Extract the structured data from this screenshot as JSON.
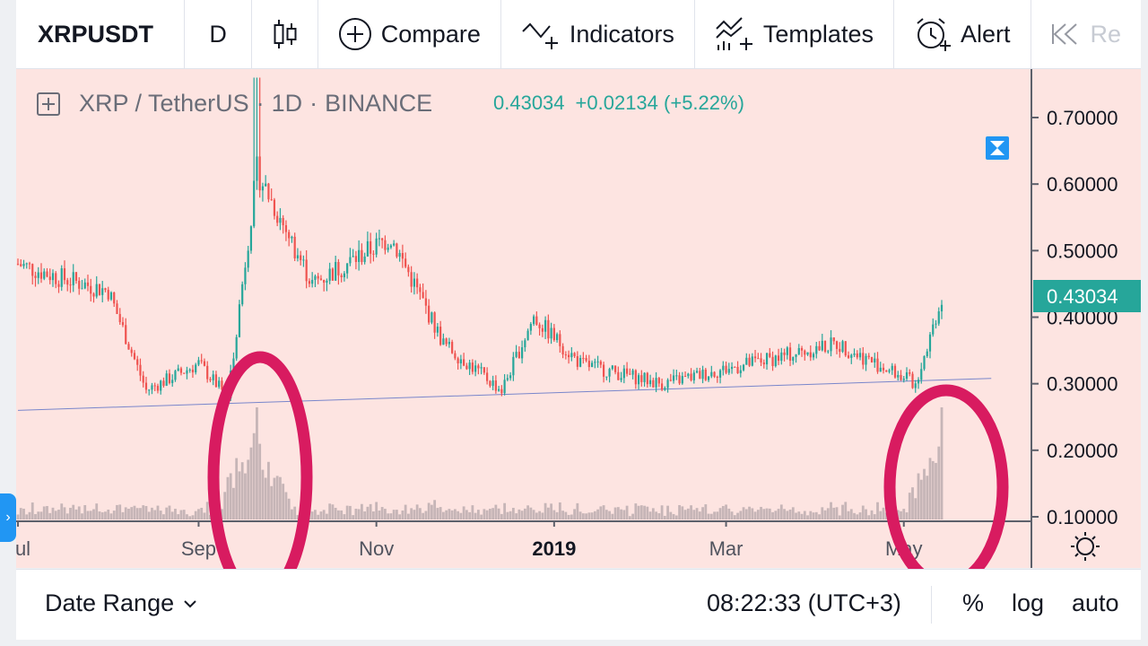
{
  "toolbar": {
    "symbol": "XRPUSDT",
    "interval": "D",
    "compare_label": "Compare",
    "indicators_label": "Indicators",
    "templates_label": "Templates",
    "alert_label": "Alert",
    "replay_label": "Re"
  },
  "legend": {
    "pair": "XRP / TetherUS",
    "dot1": "·",
    "timeframe": "1D",
    "dot2": "·",
    "exchange": "BINANCE",
    "price": "0.43034",
    "change": "+0.02134 (+5.22%)"
  },
  "price_axis": {
    "ticks": [
      "0.70000",
      "0.60000",
      "0.50000",
      "0.40000",
      "0.30000",
      "0.20000",
      "0.10000"
    ],
    "last_price_label": "0.43034"
  },
  "time_axis": {
    "labels": [
      "Jul",
      "Sep",
      "Nov",
      "2019",
      "Mar",
      "May"
    ]
  },
  "bottom_bar": {
    "date_range_label": "Date Range",
    "clock": "08:22:33 (UTC+3)",
    "percent_label": "%",
    "log_label": "log",
    "auto_label": "auto"
  },
  "colors": {
    "up": "#26a69a",
    "down": "#ef5350",
    "chart_bg": "#fde4e1",
    "annotation": "#d81b60",
    "trendline": "#7986cb",
    "volume": "#c6b5b7"
  },
  "chart_data": {
    "type": "candlestick",
    "title": "XRP / TetherUS · 1D · BINANCE",
    "x_range": [
      "2018-07-01",
      "2019-05-14"
    ],
    "y_range": [
      0.1,
      0.75
    ],
    "last_price": 0.43034,
    "price_path_anchors": [
      {
        "date": "2018-07-01",
        "close": 0.48
      },
      {
        "date": "2018-07-15",
        "close": 0.46
      },
      {
        "date": "2018-08-01",
        "close": 0.44
      },
      {
        "date": "2018-08-14",
        "close": 0.29
      },
      {
        "date": "2018-09-01",
        "close": 0.33
      },
      {
        "date": "2018-09-11",
        "close": 0.28
      },
      {
        "date": "2018-09-21",
        "close": 0.62
      },
      {
        "date": "2018-10-10",
        "close": 0.45
      },
      {
        "date": "2018-11-06",
        "close": 0.52
      },
      {
        "date": "2018-11-24",
        "close": 0.36
      },
      {
        "date": "2018-12-14",
        "close": 0.29
      },
      {
        "date": "2018-12-25",
        "close": 0.4
      },
      {
        "date": "2019-01-10",
        "close": 0.33
      },
      {
        "date": "2019-02-07",
        "close": 0.3
      },
      {
        "date": "2019-04-08",
        "close": 0.36
      },
      {
        "date": "2019-05-05",
        "close": 0.3
      },
      {
        "date": "2019-05-14",
        "close": 0.43
      }
    ],
    "trendline": [
      {
        "date": "2018-07-01",
        "price": 0.26
      },
      {
        "date": "2019-05-31",
        "price": 0.308
      }
    ],
    "annotations": [
      {
        "shape": "ellipse",
        "near": "2018-09-21 volume spike"
      },
      {
        "shape": "ellipse",
        "near": "2019-05-14 volume spike"
      }
    ],
    "volume_spikes": [
      "2018-09-21",
      "2019-05-14"
    ]
  }
}
